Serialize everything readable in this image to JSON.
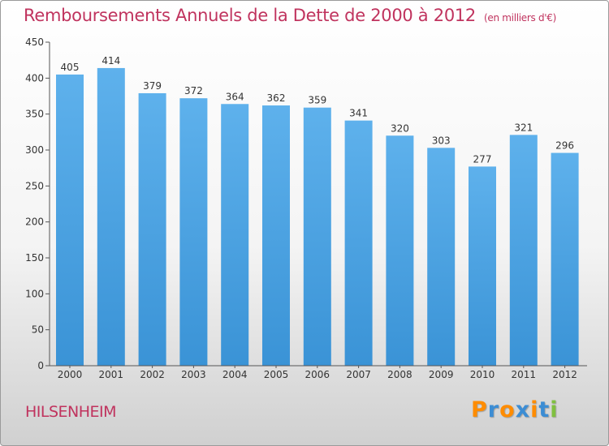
{
  "chart_data": {
    "type": "bar",
    "title": "Remboursements Annuels de la Dette de 2000 à 2012",
    "unit": "(en milliers d'€)",
    "categories": [
      "2000",
      "2001",
      "2002",
      "2003",
      "2004",
      "2005",
      "2006",
      "2007",
      "2008",
      "2009",
      "2010",
      "2011",
      "2012"
    ],
    "values": [
      405,
      414,
      379,
      372,
      364,
      362,
      359,
      341,
      320,
      303,
      277,
      321,
      296
    ],
    "ylim": [
      0,
      450
    ],
    "yticks": [
      0,
      50,
      100,
      150,
      200,
      250,
      300,
      350,
      400,
      450
    ],
    "xlabel": "",
    "ylabel": "",
    "grid": false,
    "bar_color": "#3a93d6"
  },
  "footer": {
    "commune": "HILSENHEIM",
    "brand": "Proxiti",
    "brand_colors": [
      "#ff8c00",
      "#3c8dd4",
      "#ff8c00",
      "#3c8dd4",
      "#ff8c00",
      "#3c8dd4",
      "#80c040"
    ]
  }
}
